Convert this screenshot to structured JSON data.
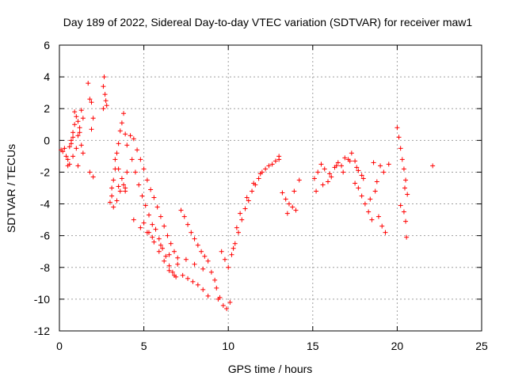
{
  "chart_data": {
    "type": "scatter",
    "title": "Day 189 of 2022, Sidereal Day-to-day VTEC variation (SDTVAR) for receiver maw1",
    "xlabel": "GPS time / hours",
    "ylabel": "SDTVAR / TECUs",
    "xlim": [
      0,
      25
    ],
    "ylim": [
      -12,
      6
    ],
    "xticks": [
      0,
      5,
      10,
      15,
      20,
      25
    ],
    "yticks": [
      -12,
      -10,
      -8,
      -6,
      -4,
      -2,
      0,
      2,
      4,
      6
    ],
    "grid": true,
    "marker": "+",
    "color": "#ff0000",
    "series": [
      {
        "name": "SDTVAR",
        "x": [
          0.1,
          0.2,
          0.3,
          0.4,
          0.5,
          0.6,
          0.7,
          0.8,
          0.9,
          1.0,
          1.1,
          1.2,
          1.3,
          1.4,
          0.5,
          0.7,
          0.9,
          1.1,
          1.3,
          0.6,
          0.8,
          1.0,
          1.2,
          1.4,
          0.8,
          1.1,
          1.7,
          1.8,
          1.9,
          2.0,
          1.8,
          2.0,
          1.9,
          2.6,
          2.7,
          2.8,
          2.65,
          2.75,
          2.6,
          3.0,
          3.1,
          3.2,
          3.3,
          3.4,
          3.5,
          3.6,
          3.7,
          3.8,
          3.9,
          4.0,
          3.2,
          3.4,
          3.6,
          3.8,
          4.0,
          3.3,
          3.5,
          3.7,
          3.9,
          3.1,
          3.5,
          3.9,
          4.2,
          4.4,
          4.6,
          4.8,
          5.0,
          5.2,
          5.4,
          4.3,
          4.5,
          4.7,
          4.9,
          5.1,
          5.3,
          5.5,
          4.4,
          4.8,
          5.2,
          5.6,
          5.8,
          6.0,
          6.2,
          6.4,
          6.6,
          6.8,
          7.0,
          5.7,
          5.9,
          6.1,
          6.3,
          6.5,
          6.7,
          6.9,
          5.5,
          6.0,
          6.5,
          7.0,
          5.0,
          5.3,
          5.6,
          5.9,
          6.2,
          6.5,
          6.8,
          7.2,
          7.4,
          7.6,
          7.8,
          8.0,
          8.2,
          8.4,
          8.6,
          8.8,
          7.3,
          7.6,
          7.9,
          8.2,
          8.5,
          8.8,
          7.5,
          8.0,
          8.5,
          9.0,
          9.2,
          9.4,
          9.3,
          9.5,
          9.7,
          9.9,
          10.1,
          10.0,
          9.8,
          9.6,
          10.2,
          10.4,
          10.6,
          10.8,
          11.0,
          11.2,
          11.4,
          11.6,
          11.8,
          12.0,
          12.2,
          12.4,
          12.6,
          12.8,
          13.0,
          10.3,
          10.5,
          10.7,
          11.1,
          11.5,
          11.9,
          13.0,
          13.2,
          13.4,
          13.6,
          13.8,
          14.0,
          14.2,
          13.5,
          13.9,
          15.1,
          15.3,
          15.5,
          15.7,
          15.9,
          16.1,
          16.3,
          16.5,
          16.7,
          16.9,
          17.1,
          17.3,
          17.5,
          17.7,
          17.9,
          15.2,
          15.6,
          16.0,
          16.4,
          16.8,
          17.2,
          17.6,
          17.5,
          17.7,
          17.9,
          18.1,
          18.3,
          18.5,
          18.7,
          18.9,
          19.1,
          19.3,
          18.0,
          18.4,
          18.8,
          19.2,
          18.6,
          19.0,
          19.5,
          20.0,
          20.1,
          20.2,
          20.3,
          20.4,
          20.5,
          20.6,
          20.2,
          20.4,
          20.5,
          20.55,
          20.45,
          22.1
        ],
        "y": [
          -0.6,
          -0.7,
          -0.5,
          -1.0,
          -1.6,
          -0.4,
          -0.2,
          0.5,
          1.0,
          1.5,
          0.3,
          0.8,
          -0.3,
          -0.8,
          -1.2,
          0.0,
          1.8,
          1.2,
          1.9,
          -1.5,
          -1.0,
          -0.5,
          0.5,
          1.4,
          0.2,
          -1.6,
          3.6,
          2.6,
          2.4,
          1.4,
          -2.0,
          -2.3,
          0.7,
          3.4,
          2.9,
          2.2,
          4.0,
          2.5,
          2.0,
          -3.9,
          -3.0,
          -2.5,
          -1.8,
          -0.8,
          -0.2,
          0.6,
          1.1,
          1.7,
          0.4,
          -0.3,
          -4.2,
          -3.8,
          -3.2,
          -2.8,
          -2.0,
          -1.2,
          -1.8,
          -2.4,
          -3.0,
          -3.5,
          -2.9,
          -3.2,
          0.3,
          0.1,
          -0.6,
          -1.2,
          -1.8,
          -2.5,
          -3.1,
          -1.2,
          -2.0,
          -2.8,
          -3.5,
          -4.1,
          -4.7,
          -5.3,
          -5.0,
          -5.5,
          -5.8,
          -3.6,
          -4.2,
          -4.8,
          -5.4,
          -6.0,
          -6.5,
          -7.0,
          -7.4,
          -5.6,
          -6.2,
          -6.8,
          -7.3,
          -7.9,
          -8.3,
          -8.6,
          -6.1,
          -6.6,
          -7.2,
          -7.8,
          -5.2,
          -5.8,
          -6.4,
          -7.0,
          -7.6,
          -8.2,
          -8.5,
          -4.4,
          -4.8,
          -5.3,
          -5.8,
          -6.2,
          -6.6,
          -7.0,
          -7.3,
          -7.6,
          -8.5,
          -8.7,
          -8.9,
          -9.1,
          -9.4,
          -9.8,
          -7.5,
          -7.8,
          -8.1,
          -8.3,
          -8.8,
          -10.0,
          -9.3,
          -9.9,
          -10.4,
          -10.6,
          -10.2,
          -8.0,
          -7.5,
          -7.0,
          -7.2,
          -6.5,
          -5.8,
          -5.0,
          -4.3,
          -3.8,
          -3.2,
          -2.8,
          -2.4,
          -2.0,
          -1.8,
          -1.6,
          -1.5,
          -1.3,
          -1.2,
          -6.8,
          -5.5,
          -4.6,
          -3.6,
          -2.7,
          -2.1,
          -1.0,
          -3.3,
          -3.7,
          -4.0,
          -4.2,
          -4.4,
          -2.5,
          -4.6,
          -3.2,
          -2.4,
          -2.0,
          -1.5,
          -1.8,
          -2.6,
          -2.3,
          -1.7,
          -1.4,
          -1.6,
          -1.1,
          -1.2,
          -0.8,
          -1.3,
          -1.9,
          -2.2,
          -3.2,
          -2.8,
          -2.1,
          -1.6,
          -2.0,
          -1.3,
          -1.7,
          -2.7,
          -3.0,
          -3.5,
          -4.0,
          -4.5,
          -5.0,
          -3.2,
          -4.8,
          -5.4,
          -5.8,
          -2.4,
          -3.7,
          -2.6,
          -2.0,
          -1.4,
          -1.6,
          -1.5,
          0.8,
          0.2,
          -0.5,
          -1.2,
          -1.8,
          -2.5,
          -3.4,
          -4.1,
          -4.5,
          -5.1,
          -6.1,
          -3.0,
          -1.6
        ]
      }
    ]
  }
}
